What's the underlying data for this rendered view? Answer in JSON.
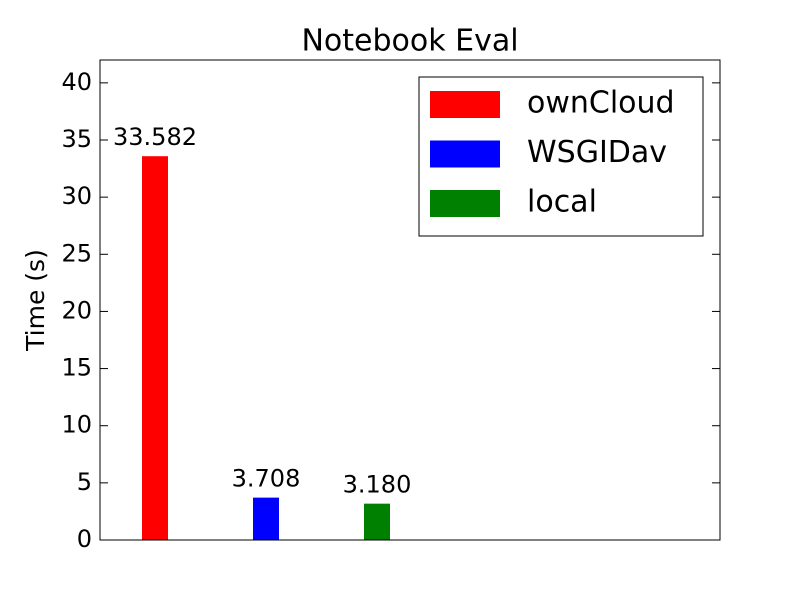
{
  "chart_data": {
    "type": "bar",
    "title": "Notebook Eval",
    "ylabel": "Time (s)",
    "series": [
      {
        "name": "ownCloud",
        "color": "#ff0000",
        "values": [
          33.582
        ],
        "value_labels": [
          "33.582"
        ]
      },
      {
        "name": "WSGIDav",
        "color": "#0000ff",
        "values": [
          3.708
        ],
        "value_labels": [
          "3.708"
        ]
      },
      {
        "name": "local",
        "color": "#008000",
        "values": [
          3.18
        ],
        "value_labels": [
          "3.180"
        ]
      }
    ],
    "ylim": [
      0,
      42
    ],
    "yticks": [
      0,
      5,
      10,
      15,
      20,
      25,
      30,
      35,
      40
    ],
    "grid": false,
    "legend": "upper right"
  }
}
